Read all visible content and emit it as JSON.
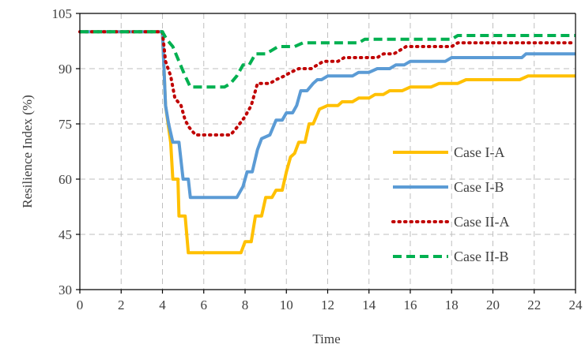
{
  "chart_data": {
    "type": "line",
    "title": "",
    "xlabel": "Time",
    "ylabel": "Resilience Index (%)",
    "xlim": [
      0,
      24
    ],
    "ylim": [
      30,
      105
    ],
    "xticks": [
      "0",
      "2",
      "4",
      "6",
      "8",
      "10",
      "12",
      "14",
      "16",
      "18",
      "20",
      "22",
      "24"
    ],
    "yticks": [
      "30",
      "45",
      "60",
      "75",
      "90",
      "105"
    ],
    "xtick_values": [
      0,
      2,
      4,
      6,
      8,
      10,
      12,
      14,
      16,
      18,
      20,
      22,
      24
    ],
    "ytick_values": [
      30,
      45,
      60,
      75,
      90,
      105
    ],
    "grid": true,
    "legend_position": "center-right",
    "series": [
      {
        "name": "Case I-A",
        "color": "#ffc000",
        "style": "solid",
        "points": [
          [
            0,
            100
          ],
          [
            4,
            100
          ],
          [
            4.15,
            80
          ],
          [
            4.4,
            70
          ],
          [
            4.5,
            60
          ],
          [
            4.75,
            60
          ],
          [
            4.8,
            50
          ],
          [
            5.1,
            50
          ],
          [
            5.25,
            40
          ],
          [
            7.8,
            40
          ],
          [
            8,
            43
          ],
          [
            8.3,
            43
          ],
          [
            8.5,
            50
          ],
          [
            8.8,
            50
          ],
          [
            9,
            55
          ],
          [
            9.3,
            55
          ],
          [
            9.5,
            57
          ],
          [
            9.8,
            57
          ],
          [
            10,
            62
          ],
          [
            10.2,
            66
          ],
          [
            10.4,
            67
          ],
          [
            10.6,
            70
          ],
          [
            10.9,
            70
          ],
          [
            11.1,
            75
          ],
          [
            11.3,
            75
          ],
          [
            11.6,
            79
          ],
          [
            12,
            80
          ],
          [
            12.5,
            80
          ],
          [
            12.7,
            81
          ],
          [
            13.2,
            81
          ],
          [
            13.5,
            82
          ],
          [
            14,
            82
          ],
          [
            14.3,
            83
          ],
          [
            14.7,
            83
          ],
          [
            15,
            84
          ],
          [
            15.6,
            84
          ],
          [
            16,
            85
          ],
          [
            17,
            85
          ],
          [
            17.4,
            86
          ],
          [
            18.3,
            86
          ],
          [
            18.7,
            87
          ],
          [
            21.3,
            87
          ],
          [
            21.7,
            88
          ],
          [
            24,
            88
          ]
        ]
      },
      {
        "name": "Case I-B",
        "color": "#5b9bd5",
        "style": "solid",
        "points": [
          [
            0,
            100
          ],
          [
            4,
            100
          ],
          [
            4.15,
            80
          ],
          [
            4.3,
            75
          ],
          [
            4.5,
            70
          ],
          [
            4.8,
            70
          ],
          [
            5,
            60
          ],
          [
            5.25,
            60
          ],
          [
            5.35,
            55
          ],
          [
            7.6,
            55
          ],
          [
            7.9,
            58
          ],
          [
            8.1,
            62
          ],
          [
            8.35,
            62
          ],
          [
            8.6,
            68
          ],
          [
            8.8,
            71
          ],
          [
            9.2,
            72
          ],
          [
            9.5,
            76
          ],
          [
            9.8,
            76
          ],
          [
            10,
            78
          ],
          [
            10.3,
            78
          ],
          [
            10.5,
            80
          ],
          [
            10.7,
            84
          ],
          [
            11,
            84
          ],
          [
            11.3,
            86
          ],
          [
            11.5,
            87
          ],
          [
            11.7,
            87
          ],
          [
            12,
            88
          ],
          [
            13.2,
            88
          ],
          [
            13.5,
            89
          ],
          [
            14,
            89
          ],
          [
            14.4,
            90
          ],
          [
            15,
            90
          ],
          [
            15.3,
            91
          ],
          [
            15.7,
            91
          ],
          [
            16,
            92
          ],
          [
            17.7,
            92
          ],
          [
            18,
            93
          ],
          [
            21.4,
            93
          ],
          [
            21.6,
            94
          ],
          [
            24,
            94
          ]
        ]
      },
      {
        "name": "Case II-A",
        "color": "#c00000",
        "style": "dotted",
        "points": [
          [
            0,
            100
          ],
          [
            4,
            100
          ],
          [
            4.15,
            92
          ],
          [
            4.4,
            88
          ],
          [
            4.6,
            82
          ],
          [
            4.9,
            80
          ],
          [
            5.1,
            76
          ],
          [
            5.3,
            74
          ],
          [
            5.6,
            72
          ],
          [
            7.3,
            72
          ],
          [
            7.6,
            74
          ],
          [
            8,
            77
          ],
          [
            8.3,
            80
          ],
          [
            8.6,
            86
          ],
          [
            9.2,
            86
          ],
          [
            9.5,
            87
          ],
          [
            9.9,
            88
          ],
          [
            10.2,
            89
          ],
          [
            10.6,
            90
          ],
          [
            11.2,
            90
          ],
          [
            11.5,
            91
          ],
          [
            11.8,
            92
          ],
          [
            12.5,
            92
          ],
          [
            12.8,
            93
          ],
          [
            14.4,
            93
          ],
          [
            14.7,
            94
          ],
          [
            15.2,
            94
          ],
          [
            15.5,
            95
          ],
          [
            15.8,
            96
          ],
          [
            18,
            96
          ],
          [
            18.3,
            97
          ],
          [
            24,
            97
          ]
        ]
      },
      {
        "name": "Case II-B",
        "color": "#00b050",
        "style": "dashed",
        "points": [
          [
            0,
            100
          ],
          [
            4,
            100
          ],
          [
            4.2,
            98
          ],
          [
            4.5,
            96
          ],
          [
            4.8,
            92
          ],
          [
            5.1,
            88
          ],
          [
            5.35,
            85
          ],
          [
            7,
            85
          ],
          [
            7.3,
            86
          ],
          [
            7.6,
            88
          ],
          [
            7.9,
            91
          ],
          [
            8.2,
            91
          ],
          [
            8.5,
            94
          ],
          [
            9,
            94
          ],
          [
            9.3,
            95
          ],
          [
            9.6,
            96
          ],
          [
            10.4,
            96
          ],
          [
            10.8,
            97
          ],
          [
            13.5,
            97
          ],
          [
            13.8,
            98
          ],
          [
            18,
            98
          ],
          [
            18.3,
            99
          ],
          [
            24,
            99
          ]
        ]
      }
    ]
  }
}
